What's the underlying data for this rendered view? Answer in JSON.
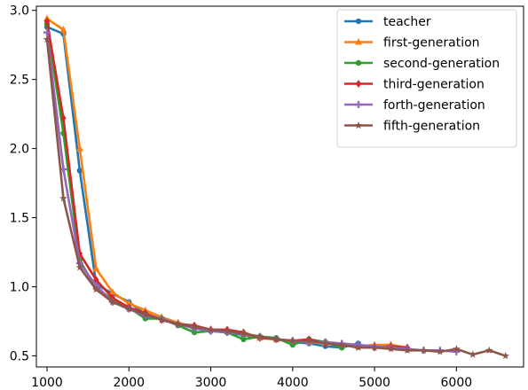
{
  "chart_data": {
    "type": "line",
    "title": "",
    "xlabel": "",
    "ylabel": "",
    "xlim": [
      870,
      6820
    ],
    "ylim": [
      0.42,
      3.03
    ],
    "xticks": [
      1000,
      2000,
      3000,
      4000,
      5000,
      6000
    ],
    "yticks": [
      0.5,
      1.0,
      1.5,
      2.0,
      2.5,
      3.0
    ],
    "xtick_labels": [
      "1000",
      "2000",
      "3000",
      "4000",
      "5000",
      "6000"
    ],
    "ytick_labels": [
      "0.5",
      "1.0",
      "1.5",
      "2.0",
      "2.5",
      "3.0"
    ],
    "grid": false,
    "legend_position": "top-right",
    "series": [
      {
        "name": "teacher",
        "color": "#1f77b4",
        "marker": "circle",
        "x": [
          1000,
          1200,
          1400,
          1600,
          1800,
          2000,
          2200,
          2400,
          2600,
          2800,
          3000,
          3200,
          3400,
          3600,
          3800,
          4000,
          4200,
          4400,
          4600,
          4800
        ],
        "y": [
          2.88,
          2.83,
          1.84,
          1.02,
          0.95,
          0.89,
          0.8,
          0.77,
          0.73,
          0.7,
          0.68,
          0.67,
          0.65,
          0.63,
          0.62,
          0.6,
          0.59,
          0.57,
          0.56,
          0.59
        ]
      },
      {
        "name": "first-generation",
        "color": "#ff7f0e",
        "marker": "triangle",
        "x": [
          1000,
          1200,
          1400,
          1600,
          1800,
          2000,
          2200,
          2400,
          2600,
          2800,
          3000,
          3200,
          3400,
          3600,
          3800,
          4000,
          4200,
          4400,
          4600,
          4800,
          5000,
          5200,
          5400
        ],
        "y": [
          2.94,
          2.86,
          2.0,
          1.13,
          0.96,
          0.88,
          0.83,
          0.78,
          0.74,
          0.71,
          0.69,
          0.68,
          0.66,
          0.63,
          0.62,
          0.61,
          0.6,
          0.59,
          0.58,
          0.57,
          0.58,
          0.58,
          0.56
        ]
      },
      {
        "name": "second-generation",
        "color": "#2ca02c",
        "marker": "circle",
        "x": [
          1000,
          1200,
          1400,
          1600,
          1800,
          2000,
          2200,
          2400,
          2600,
          2800,
          3000,
          3200,
          3400,
          3600,
          3800,
          4000,
          4200,
          4400,
          4600
        ],
        "y": [
          2.9,
          2.11,
          1.19,
          0.99,
          0.91,
          0.85,
          0.77,
          0.77,
          0.72,
          0.67,
          0.68,
          0.67,
          0.62,
          0.64,
          0.63,
          0.58,
          0.62,
          0.6,
          0.56
        ]
      },
      {
        "name": "third-generation",
        "color": "#d62728",
        "marker": "diamond",
        "x": [
          1000,
          1200,
          1400,
          1600,
          1800,
          2000,
          2200,
          2400,
          2600,
          2800,
          3000,
          3200,
          3400,
          3600,
          3800,
          4000,
          4200,
          4400,
          4600,
          4800,
          5000,
          5200,
          5400
        ],
        "y": [
          2.92,
          2.22,
          1.24,
          1.05,
          0.92,
          0.85,
          0.81,
          0.76,
          0.73,
          0.72,
          0.69,
          0.69,
          0.67,
          0.63,
          0.62,
          0.61,
          0.62,
          0.59,
          0.58,
          0.57,
          0.56,
          0.57,
          0.56
        ]
      },
      {
        "name": "forth-generation",
        "color": "#9467bd",
        "marker": "plus",
        "x": [
          1000,
          1200,
          1400,
          1600,
          1800,
          2000,
          2200,
          2400,
          2600,
          2800,
          3000,
          3200,
          3400,
          3600,
          3800,
          4000,
          4200,
          4400,
          4600,
          4800,
          5000,
          5200,
          5400,
          5600,
          5800,
          6000
        ],
        "y": [
          2.84,
          1.85,
          1.17,
          1.01,
          0.89,
          0.84,
          0.79,
          0.77,
          0.73,
          0.7,
          0.68,
          0.67,
          0.66,
          0.64,
          0.62,
          0.61,
          0.6,
          0.6,
          0.59,
          0.58,
          0.57,
          0.56,
          0.55,
          0.54,
          0.54,
          0.53
        ]
      },
      {
        "name": "fifth-generation",
        "color": "#8c564b",
        "marker": "star",
        "x": [
          1000,
          1200,
          1400,
          1600,
          1800,
          2000,
          2200,
          2400,
          2600,
          2800,
          3000,
          3200,
          3400,
          3600,
          3800,
          4000,
          4200,
          4400,
          4600,
          4800,
          5000,
          5200,
          5400,
          5600,
          5800,
          6000,
          6200,
          6400,
          6600
        ],
        "y": [
          2.79,
          1.64,
          1.14,
          0.98,
          0.89,
          0.84,
          0.8,
          0.76,
          0.73,
          0.71,
          0.69,
          0.68,
          0.66,
          0.64,
          0.62,
          0.61,
          0.61,
          0.59,
          0.58,
          0.56,
          0.56,
          0.55,
          0.54,
          0.54,
          0.53,
          0.55,
          0.51,
          0.54,
          0.5
        ]
      }
    ]
  }
}
